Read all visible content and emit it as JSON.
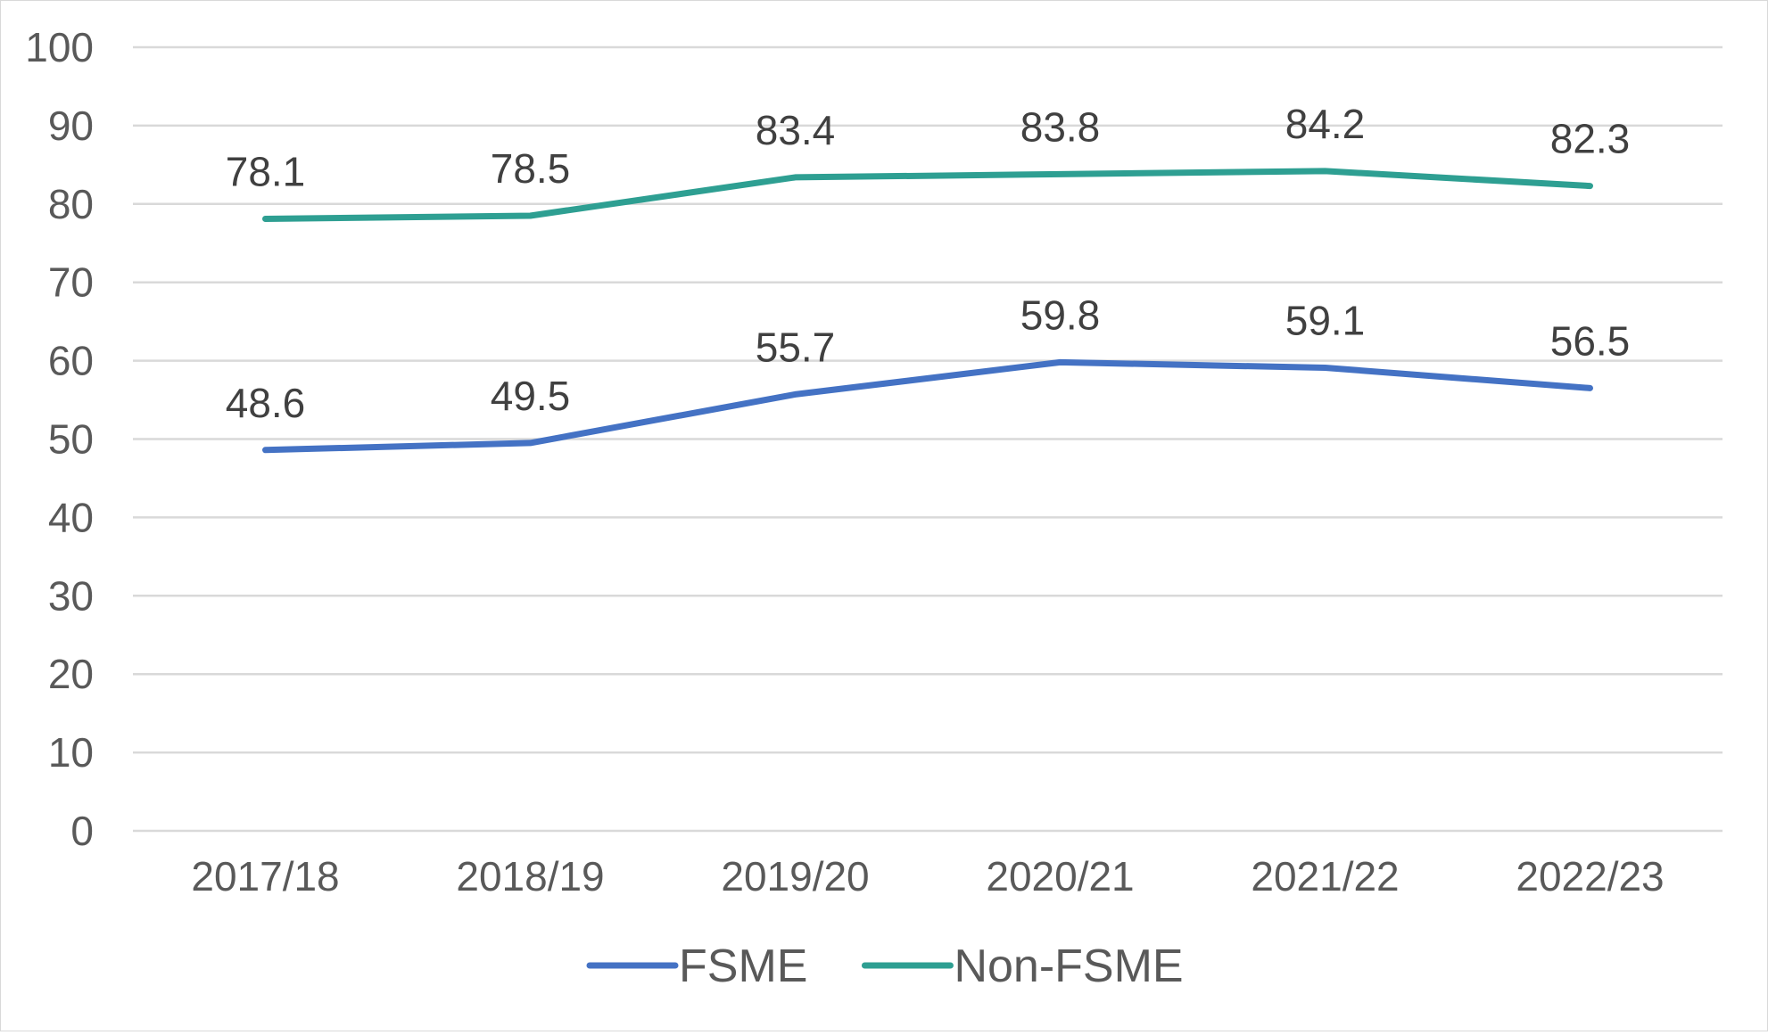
{
  "chart_data": {
    "type": "line",
    "title": "",
    "xlabel": "",
    "ylabel": "",
    "categories": [
      "2017/18",
      "2018/19",
      "2019/20",
      "2020/21",
      "2021/22",
      "2022/23"
    ],
    "ylim": [
      0,
      100
    ],
    "yticks": [
      0,
      10,
      20,
      30,
      40,
      50,
      60,
      70,
      80,
      90,
      100
    ],
    "grid": true,
    "legend_position": "bottom",
    "series": [
      {
        "name": "FSME",
        "color": "#4472C4",
        "values": [
          48.6,
          49.5,
          55.7,
          59.8,
          59.1,
          56.5
        ],
        "labels": [
          "48.6",
          "49.5",
          "55.7",
          "59.8",
          "59.1",
          "56.5"
        ]
      },
      {
        "name": "Non-FSME",
        "color": "#2E9F92",
        "values": [
          78.1,
          78.5,
          83.4,
          83.8,
          84.2,
          82.3
        ],
        "labels": [
          "78.1",
          "78.5",
          "83.4",
          "83.8",
          "84.2",
          "82.3"
        ]
      }
    ]
  }
}
